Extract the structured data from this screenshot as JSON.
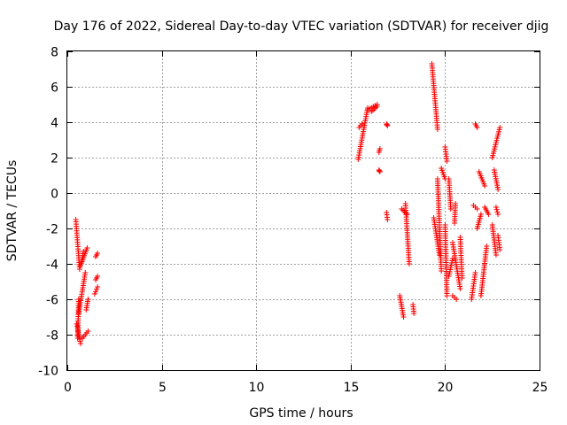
{
  "chart_data": {
    "type": "scatter",
    "title": "Day 176 of 2022, Sidereal Day-to-day VTEC variation (SDTVAR) for receiver djig",
    "xlabel": "GPS time / hours",
    "ylabel": "SDTVAR / TECUs",
    "xlim": [
      0,
      25
    ],
    "ylim": [
      -10,
      8
    ],
    "xticks": [
      0,
      5,
      10,
      15,
      20,
      25
    ],
    "yticks": [
      -10,
      -8,
      -6,
      -4,
      -2,
      0,
      2,
      4,
      6,
      8
    ],
    "xtick_labels": [
      "0",
      "5",
      "10",
      "15",
      "20",
      "25"
    ],
    "ytick_labels": [
      "-10",
      "-8",
      "-6",
      "-4",
      "-2",
      "0",
      "2",
      "4",
      "6",
      "8"
    ],
    "grid": true,
    "marker": "+",
    "color": "#ff0000",
    "series": [
      {
        "name": "SDTVAR",
        "segments": [
          [
            0.45,
            -1.5,
            0.65,
            -4.3
          ],
          [
            0.5,
            -7.4,
            0.7,
            -8.5
          ],
          [
            0.55,
            -8.2,
            0.6,
            -6.0
          ],
          [
            0.6,
            -6.8,
            0.95,
            -4.5
          ],
          [
            0.7,
            -4.1,
            1.05,
            -3.1
          ],
          [
            0.8,
            -8.2,
            1.1,
            -7.8
          ],
          [
            0.75,
            -3.9,
            0.85,
            -3.3
          ],
          [
            1.5,
            -3.6,
            1.6,
            -3.4
          ],
          [
            1.45,
            -5.7,
            1.6,
            -5.3
          ],
          [
            1.5,
            -4.9,
            1.6,
            -4.7
          ],
          [
            1.0,
            -6.6,
            1.1,
            -6.0
          ],
          [
            15.4,
            1.9,
            15.9,
            4.8
          ],
          [
            15.45,
            3.7,
            15.6,
            3.9
          ],
          [
            15.9,
            4.7,
            16.4,
            5.0
          ],
          [
            16.1,
            4.6,
            16.4,
            4.9
          ],
          [
            16.5,
            2.3,
            16.55,
            2.5
          ],
          [
            16.5,
            1.3,
            16.55,
            1.2
          ],
          [
            16.9,
            3.9,
            16.95,
            3.8
          ],
          [
            16.9,
            -1.1,
            16.95,
            -1.5
          ],
          [
            17.6,
            -5.8,
            17.8,
            -7.0
          ],
          [
            17.7,
            -0.9,
            18.0,
            -1.2
          ],
          [
            17.9,
            -0.6,
            18.1,
            -4.0
          ],
          [
            18.3,
            -6.3,
            18.35,
            -6.8
          ],
          [
            19.3,
            7.3,
            19.6,
            3.6
          ],
          [
            19.6,
            0.8,
            19.8,
            -4.4
          ],
          [
            19.4,
            -1.4,
            19.7,
            -3.5
          ],
          [
            19.8,
            1.4,
            20.0,
            0.8
          ],
          [
            20.0,
            -1.8,
            20.1,
            -5.8
          ],
          [
            20.0,
            2.6,
            20.1,
            1.8
          ],
          [
            20.2,
            0.8,
            20.3,
            -0.9
          ],
          [
            20.4,
            -5.8,
            20.6,
            -6.0
          ],
          [
            20.4,
            -2.8,
            20.8,
            -5.4
          ],
          [
            20.8,
            -2.5,
            20.9,
            -4.8
          ],
          [
            20.2,
            -4.7,
            20.4,
            -3.7
          ],
          [
            20.5,
            -1.7,
            20.55,
            -0.6
          ],
          [
            21.4,
            -6.0,
            21.6,
            -4.5
          ],
          [
            21.5,
            -0.7,
            21.7,
            -0.9
          ],
          [
            21.6,
            3.9,
            21.7,
            3.7
          ],
          [
            21.7,
            -2.0,
            21.9,
            -1.2
          ],
          [
            21.8,
            1.2,
            22.1,
            0.4
          ],
          [
            21.9,
            -5.8,
            22.2,
            -3.0
          ],
          [
            22.1,
            -0.8,
            22.3,
            -1.2
          ],
          [
            22.5,
            -1.8,
            22.7,
            -3.5
          ],
          [
            22.5,
            2.0,
            22.9,
            3.7
          ],
          [
            22.6,
            1.3,
            22.8,
            0.2
          ],
          [
            22.7,
            -0.8,
            22.8,
            -1.2
          ],
          [
            22.8,
            -2.4,
            22.9,
            -3.2
          ]
        ]
      }
    ]
  }
}
